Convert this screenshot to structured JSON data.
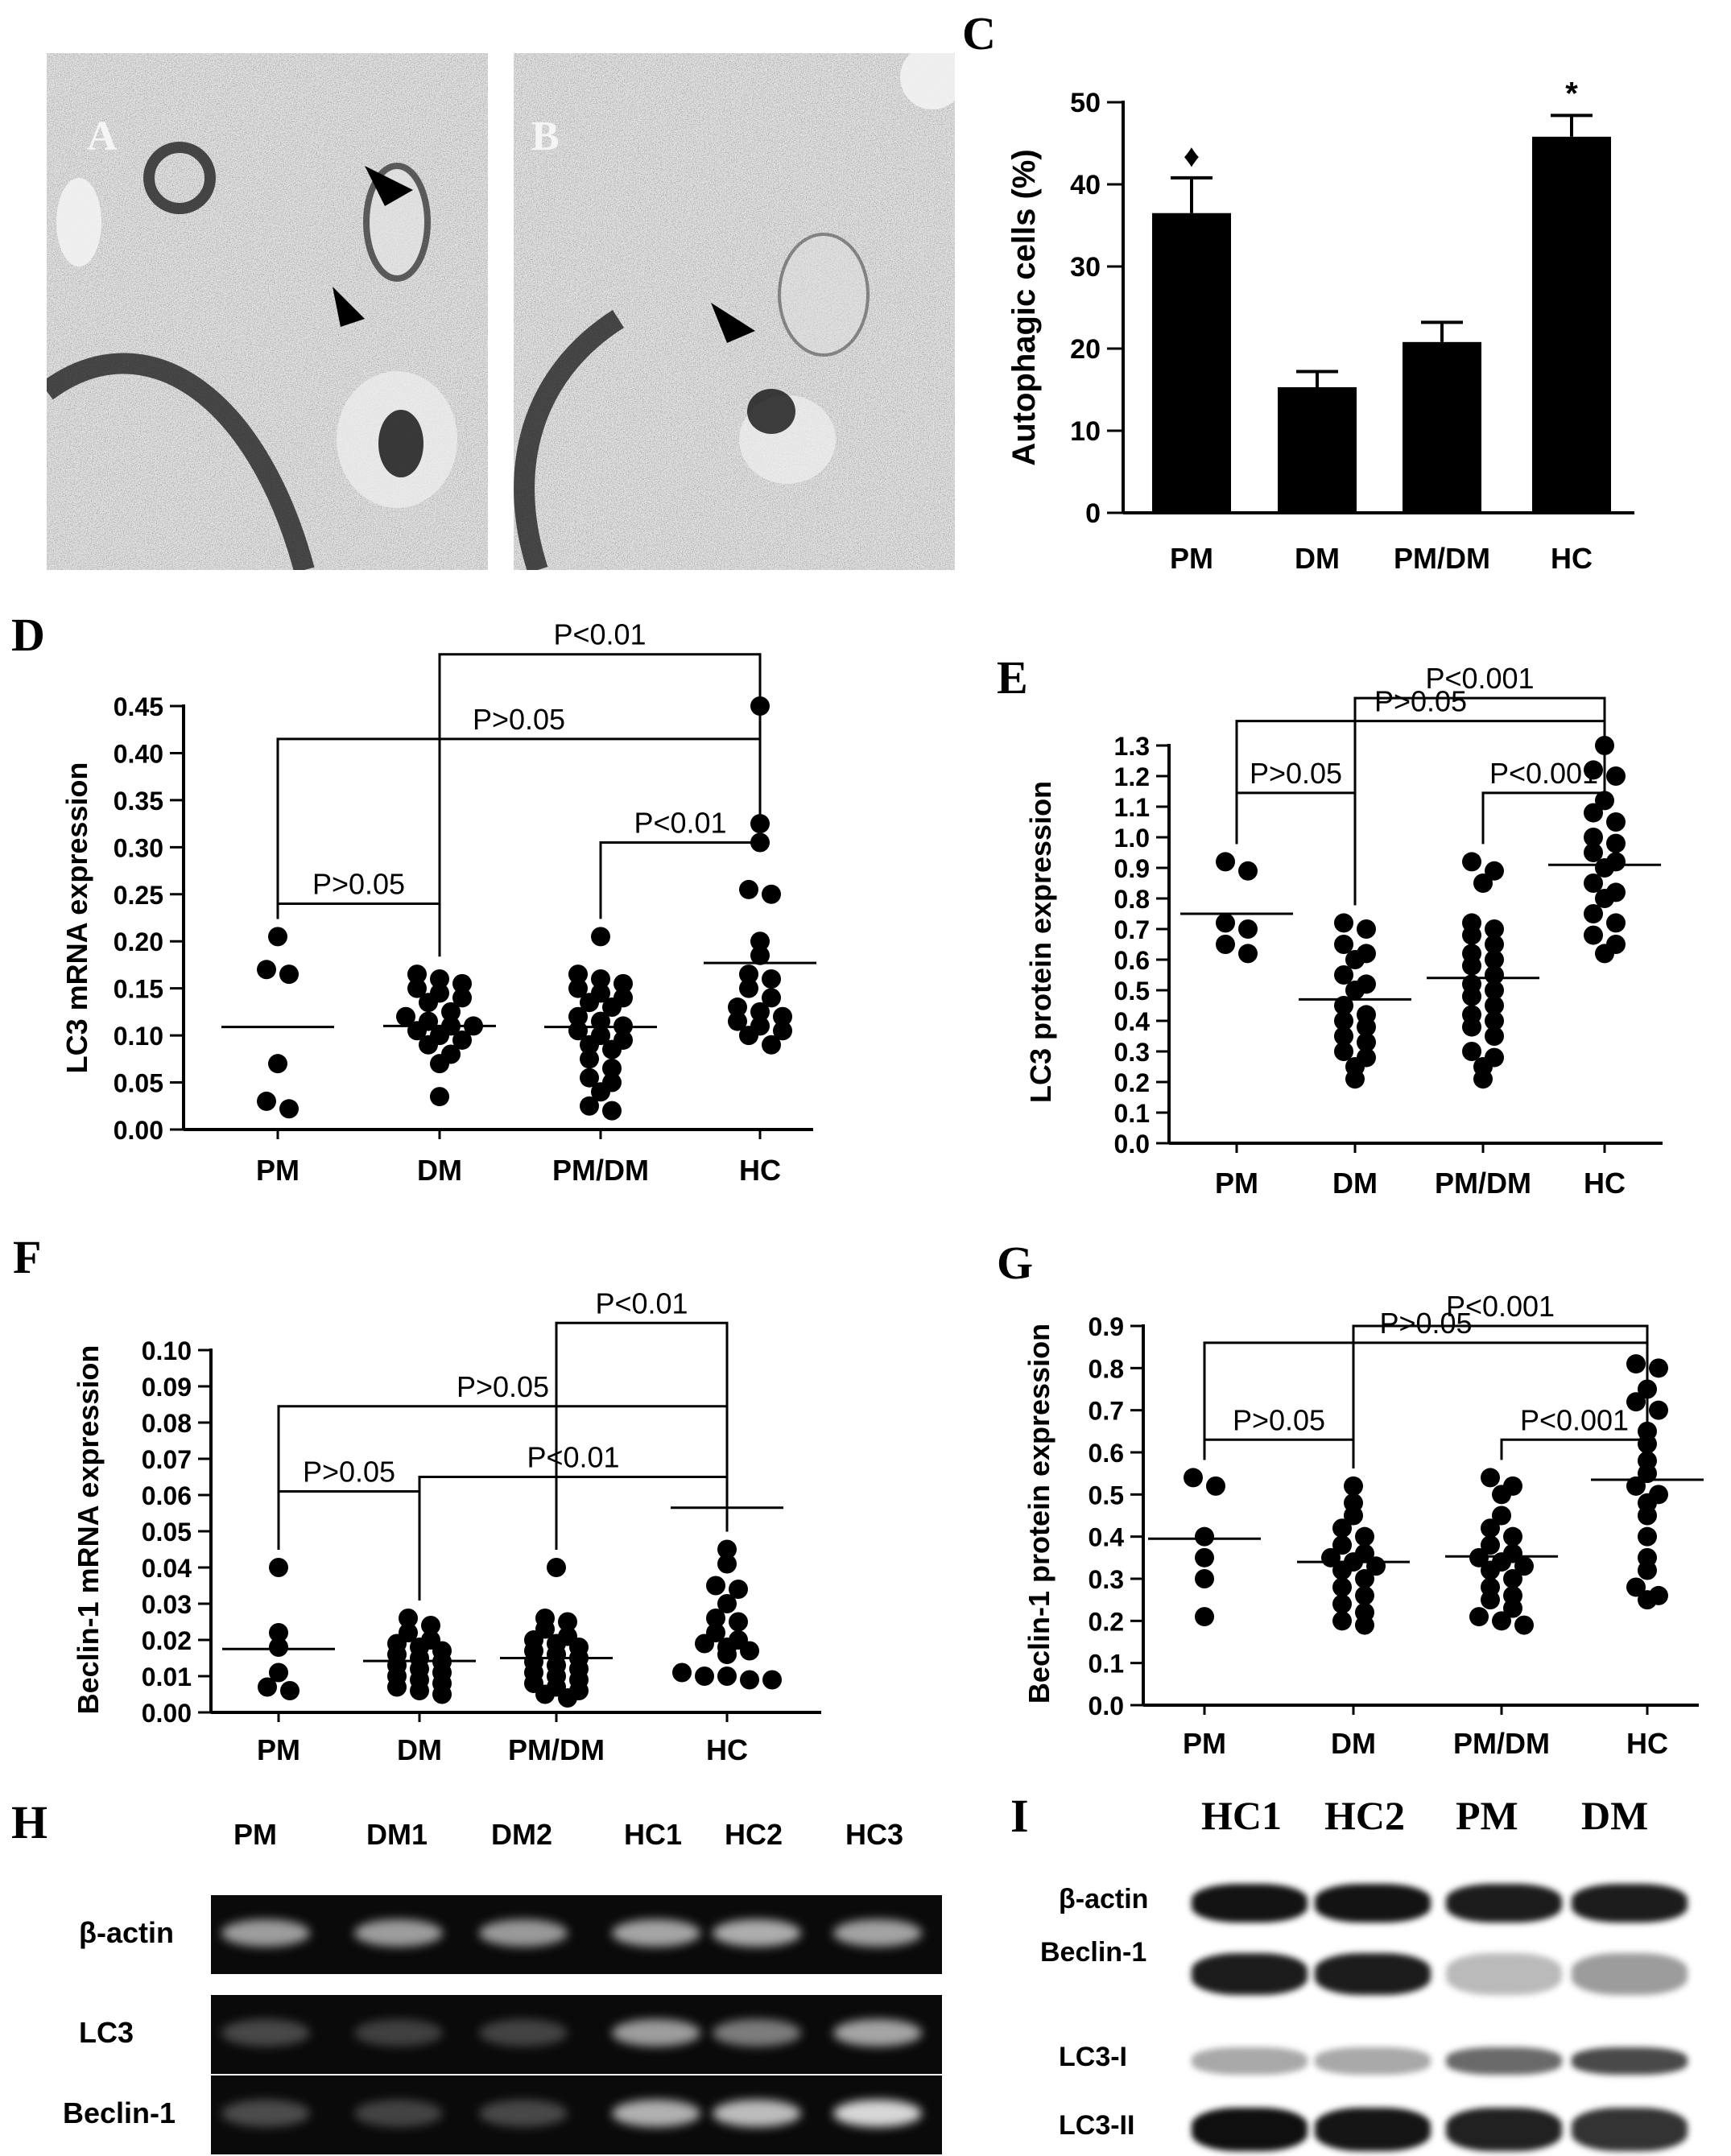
{
  "panels": {
    "A": "A",
    "B": "B",
    "C": "C",
    "D": "D",
    "E": "E",
    "F": "F",
    "G": "G",
    "H": "H",
    "I": "I"
  },
  "em_labels": {
    "a": "A",
    "b": "B"
  },
  "chart_data": [
    {
      "id": "C",
      "type": "bar",
      "title": "",
      "xlabel": "",
      "ylabel": "Autophagic cells (%)",
      "ylim": [
        0,
        50
      ],
      "yticks": [
        0,
        10,
        20,
        30,
        40,
        50
      ],
      "categories": [
        "PM",
        "DM",
        "PM/DM",
        "HC"
      ],
      "values": [
        36.5,
        15.3,
        20.8,
        45.8
      ],
      "errors": [
        4.3,
        1.9,
        2.4,
        2.6
      ],
      "markers": [
        "♦",
        "",
        "",
        "*"
      ]
    },
    {
      "id": "D",
      "type": "scatter",
      "ylabel": "LC3 mRNA expression",
      "ylim": [
        0,
        0.45
      ],
      "yticks": [
        "0.00",
        "0.05",
        "0.10",
        "0.15",
        "0.20",
        "0.25",
        "0.30",
        "0.35",
        "0.40",
        "0.45"
      ],
      "categories": [
        "PM",
        "DM",
        "PM/DM",
        "HC"
      ],
      "means": [
        0.109,
        0.11,
        0.109,
        0.177
      ],
      "groups": [
        [
          0.205,
          0.17,
          0.165,
          0.07,
          0.03,
          0.022
        ],
        [
          0.165,
          0.16,
          0.155,
          0.15,
          0.145,
          0.14,
          0.135,
          0.125,
          0.12,
          0.115,
          0.11,
          0.11,
          0.105,
          0.1,
          0.095,
          0.09,
          0.08,
          0.07,
          0.035
        ],
        [
          0.205,
          0.165,
          0.16,
          0.155,
          0.15,
          0.145,
          0.14,
          0.135,
          0.13,
          0.12,
          0.115,
          0.11,
          0.105,
          0.1,
          0.095,
          0.09,
          0.085,
          0.075,
          0.065,
          0.055,
          0.05,
          0.04,
          0.025,
          0.02
        ],
        [
          0.45,
          0.325,
          0.305,
          0.255,
          0.25,
          0.2,
          0.185,
          0.165,
          0.16,
          0.15,
          0.14,
          0.13,
          0.125,
          0.12,
          0.115,
          0.11,
          0.105,
          0.1,
          0.09
        ]
      ],
      "brackets": [
        {
          "text": "P<0.01",
          "from": 1,
          "to": 3,
          "level": 0.505
        },
        {
          "text": "P>0.05",
          "from": 0,
          "to": 3,
          "level": 0.415
        },
        {
          "text": "P>0.05",
          "from": 0,
          "to": 1,
          "level": 0.24
        },
        {
          "text": "P<0.01",
          "from": 2,
          "to": 3,
          "level": 0.305
        }
      ]
    },
    {
      "id": "E",
      "type": "scatter",
      "ylabel": "LC3 protein expression",
      "ylim": [
        0,
        1.3
      ],
      "yticks": [
        "0.0",
        "0.1",
        "0.2",
        "0.3",
        "0.4",
        "0.5",
        "0.6",
        "0.7",
        "0.8",
        "0.9",
        "1.0",
        "1.1",
        "1.2",
        "1.3"
      ],
      "categories": [
        "PM",
        "DM",
        "PM/DM",
        "HC"
      ],
      "means": [
        0.75,
        0.47,
        0.54,
        0.91
      ],
      "groups": [
        [
          0.92,
          0.89,
          0.72,
          0.7,
          0.65,
          0.62
        ],
        [
          0.72,
          0.7,
          0.65,
          0.62,
          0.6,
          0.55,
          0.52,
          0.5,
          0.45,
          0.42,
          0.4,
          0.38,
          0.35,
          0.33,
          0.3,
          0.28,
          0.25,
          0.21
        ],
        [
          0.92,
          0.89,
          0.85,
          0.72,
          0.7,
          0.68,
          0.65,
          0.62,
          0.6,
          0.58,
          0.55,
          0.52,
          0.5,
          0.48,
          0.45,
          0.42,
          0.4,
          0.38,
          0.35,
          0.3,
          0.28,
          0.25,
          0.21
        ],
        [
          1.3,
          1.22,
          1.2,
          1.12,
          1.08,
          1.05,
          1.0,
          0.98,
          0.95,
          0.92,
          0.9,
          0.85,
          0.82,
          0.8,
          0.75,
          0.72,
          0.68,
          0.65,
          0.62
        ]
      ],
      "brackets": [
        {
          "text": "P<0.001",
          "from": 1,
          "to": 3,
          "level": 1.455
        },
        {
          "text": "P>0.05",
          "from": 0,
          "to": 3,
          "level": 1.38
        },
        {
          "text": "P>0.05",
          "from": 0,
          "to": 1,
          "level": 1.145
        },
        {
          "text": "P<0.001",
          "from": 2,
          "to": 3,
          "level": 1.145
        }
      ]
    },
    {
      "id": "F",
      "type": "scatter",
      "ylabel": "Beclin-1 mRNA expression",
      "ylim": [
        0,
        0.1
      ],
      "yticks": [
        "0.00",
        "0.01",
        "0.02",
        "0.03",
        "0.04",
        "0.05",
        "0.06",
        "0.07",
        "0.08",
        "0.09",
        "0.10"
      ],
      "categories": [
        "PM",
        "DM",
        "PM/DM",
        "HC"
      ],
      "means": [
        0.0175,
        0.0142,
        0.015,
        0.0565
      ],
      "groups": [
        [
          0.04,
          0.022,
          0.018,
          0.011,
          0.007,
          0.006
        ],
        [
          0.026,
          0.024,
          0.022,
          0.02,
          0.019,
          0.018,
          0.017,
          0.016,
          0.015,
          0.014,
          0.013,
          0.012,
          0.011,
          0.01,
          0.009,
          0.008,
          0.007,
          0.006,
          0.005
        ],
        [
          0.04,
          0.026,
          0.025,
          0.023,
          0.021,
          0.02,
          0.019,
          0.018,
          0.017,
          0.016,
          0.015,
          0.014,
          0.013,
          0.012,
          0.011,
          0.01,
          0.009,
          0.008,
          0.007,
          0.006,
          0.005,
          0.004
        ],
        [
          0.045,
          0.041,
          0.035,
          0.034,
          0.03,
          0.026,
          0.025,
          0.022,
          0.02,
          0.019,
          0.018,
          0.017,
          0.016,
          0.011,
          0.01,
          0.01,
          0.009,
          0.009
        ]
      ],
      "brackets": [
        {
          "text": "P<0.01",
          "from": 2,
          "to": 3,
          "level": 0.1075
        },
        {
          "text": "P>0.05",
          "from": 0,
          "to": 3,
          "level": 0.0845
        },
        {
          "text": "P>0.05",
          "from": 0,
          "to": 1,
          "level": 0.061
        },
        {
          "text": "P<0.01",
          "from": 1,
          "to": 3,
          "level": 0.065
        }
      ]
    },
    {
      "id": "G",
      "type": "scatter",
      "ylabel": "Beclin-1 protein expression",
      "ylim": [
        0,
        0.9
      ],
      "yticks": [
        "0.0",
        "0.1",
        "0.2",
        "0.3",
        "0.4",
        "0.5",
        "0.6",
        "0.7",
        "0.8",
        "0.9"
      ],
      "categories": [
        "PM",
        "DM",
        "PM/DM",
        "HC"
      ],
      "means": [
        0.395,
        0.34,
        0.353,
        0.535
      ],
      "groups": [
        [
          0.54,
          0.52,
          0.4,
          0.35,
          0.3,
          0.21
        ],
        [
          0.52,
          0.48,
          0.45,
          0.42,
          0.4,
          0.38,
          0.36,
          0.35,
          0.34,
          0.33,
          0.32,
          0.3,
          0.28,
          0.26,
          0.24,
          0.22,
          0.2,
          0.19
        ],
        [
          0.54,
          0.52,
          0.5,
          0.45,
          0.42,
          0.4,
          0.38,
          0.36,
          0.35,
          0.34,
          0.33,
          0.32,
          0.3,
          0.28,
          0.26,
          0.25,
          0.23,
          0.21,
          0.2,
          0.19
        ],
        [
          0.81,
          0.8,
          0.75,
          0.72,
          0.7,
          0.65,
          0.62,
          0.58,
          0.55,
          0.52,
          0.5,
          0.48,
          0.45,
          0.4,
          0.35,
          0.32,
          0.28,
          0.26,
          0.25
        ]
      ],
      "brackets": [
        {
          "text": "P<0.001",
          "from": 1,
          "to": 3,
          "level": 0.9
        },
        {
          "text": "P>0.05",
          "from": 0,
          "to": 3,
          "level": 0.86
        },
        {
          "text": "P>0.05",
          "from": 0,
          "to": 1,
          "level": 0.63
        },
        {
          "text": "P<0.001",
          "from": 2,
          "to": 3,
          "level": 0.63
        }
      ]
    }
  ],
  "gel_H": {
    "lanes": [
      "PM",
      "DM1",
      "DM2",
      "HC1",
      "HC2",
      "HC3"
    ],
    "rows": [
      {
        "label": "β-actin",
        "intensity": [
          0.62,
          0.62,
          0.6,
          0.66,
          0.7,
          0.65
        ]
      },
      {
        "label": "LC3",
        "intensity": [
          0.18,
          0.14,
          0.16,
          0.62,
          0.45,
          0.66
        ]
      },
      {
        "label": "Beclin-1",
        "intensity": [
          0.2,
          0.16,
          0.18,
          0.72,
          0.78,
          0.92
        ]
      }
    ]
  },
  "blot_I": {
    "lanes": [
      "HC1",
      "HC2",
      "PM",
      "DM"
    ],
    "rows": [
      {
        "label": "β-actin",
        "intensity": [
          0.96,
          0.96,
          0.92,
          0.92
        ]
      },
      {
        "label": "Beclin-1",
        "intensity": [
          0.92,
          0.92,
          0.22,
          0.35
        ]
      },
      {
        "label": "LC3-I",
        "intensity": [
          0.3,
          0.3,
          0.58,
          0.72
        ]
      },
      {
        "label": "LC3-II",
        "intensity": [
          0.98,
          0.95,
          0.9,
          0.82
        ]
      }
    ]
  }
}
